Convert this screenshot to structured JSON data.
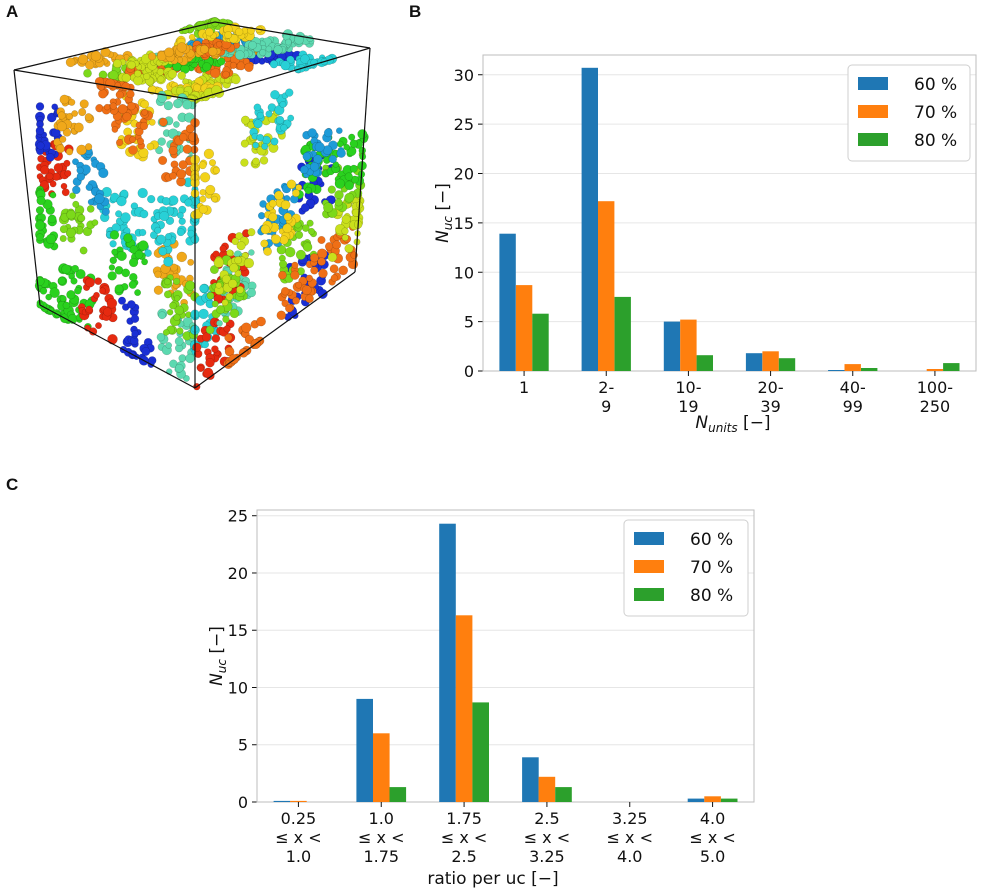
{
  "panels": {
    "a": "A",
    "b": "B",
    "c": "C"
  },
  "colors": {
    "series": [
      "#1f77b4",
      "#ff7f0e",
      "#2ca02c"
    ],
    "grid": "#e6e6e6",
    "spine": "#bdbdbd"
  },
  "image_a": {
    "description_icon": "molecular-cluster-render",
    "sphere_colors": [
      "#1a2fd4",
      "#e62a10",
      "#2ad11e",
      "#7cd91a",
      "#c9e01c",
      "#f2d21a",
      "#f0a81a",
      "#28d0d6",
      "#1e9bd8",
      "#5cd9b0",
      "#ef6f16"
    ]
  },
  "chart_data": [
    {
      "id": "B",
      "type": "bar",
      "categories": [
        "1",
        "2-\n9",
        "10-\n19",
        "20-\n39",
        "40-\n99",
        "100-\n250"
      ],
      "series": [
        {
          "name": "60 %",
          "values": [
            13.9,
            30.7,
            5.0,
            1.8,
            0.1,
            0.0
          ]
        },
        {
          "name": "70 %",
          "values": [
            8.7,
            17.2,
            5.2,
            2.0,
            0.7,
            0.2
          ]
        },
        {
          "name": "80 %",
          "values": [
            5.8,
            7.5,
            1.6,
            1.3,
            0.3,
            0.8
          ]
        }
      ],
      "yticks": [
        0,
        5,
        10,
        15,
        20,
        25,
        30
      ],
      "ylim": [
        0,
        32
      ],
      "xlabel": "N_units [−]",
      "ylabel": "N_uc [−]",
      "grid": "y",
      "legend": "top-right"
    },
    {
      "id": "C",
      "type": "bar",
      "categories": [
        "0.25\n≤ x <\n1.0",
        "1.0\n≤ x <\n1.75",
        "1.75\n≤ x <\n2.5",
        "2.5\n≤ x <\n3.25",
        "3.25\n≤ x <\n4.0",
        "4.0\n≤ x <\n5.0"
      ],
      "series": [
        {
          "name": "60 %",
          "values": [
            0.1,
            9.0,
            24.3,
            3.9,
            0.0,
            0.3
          ]
        },
        {
          "name": "70 %",
          "values": [
            0.1,
            6.0,
            16.3,
            2.2,
            0.0,
            0.5
          ]
        },
        {
          "name": "80 %",
          "values": [
            0.0,
            1.3,
            8.7,
            1.3,
            0.0,
            0.3
          ]
        }
      ],
      "yticks": [
        0,
        5,
        10,
        15,
        20,
        25
      ],
      "ylim": [
        0,
        25.5
      ],
      "xlabel": "ratio per uc [−]",
      "ylabel": "N_uc [−]",
      "grid": "y",
      "legend": "top-right"
    }
  ]
}
